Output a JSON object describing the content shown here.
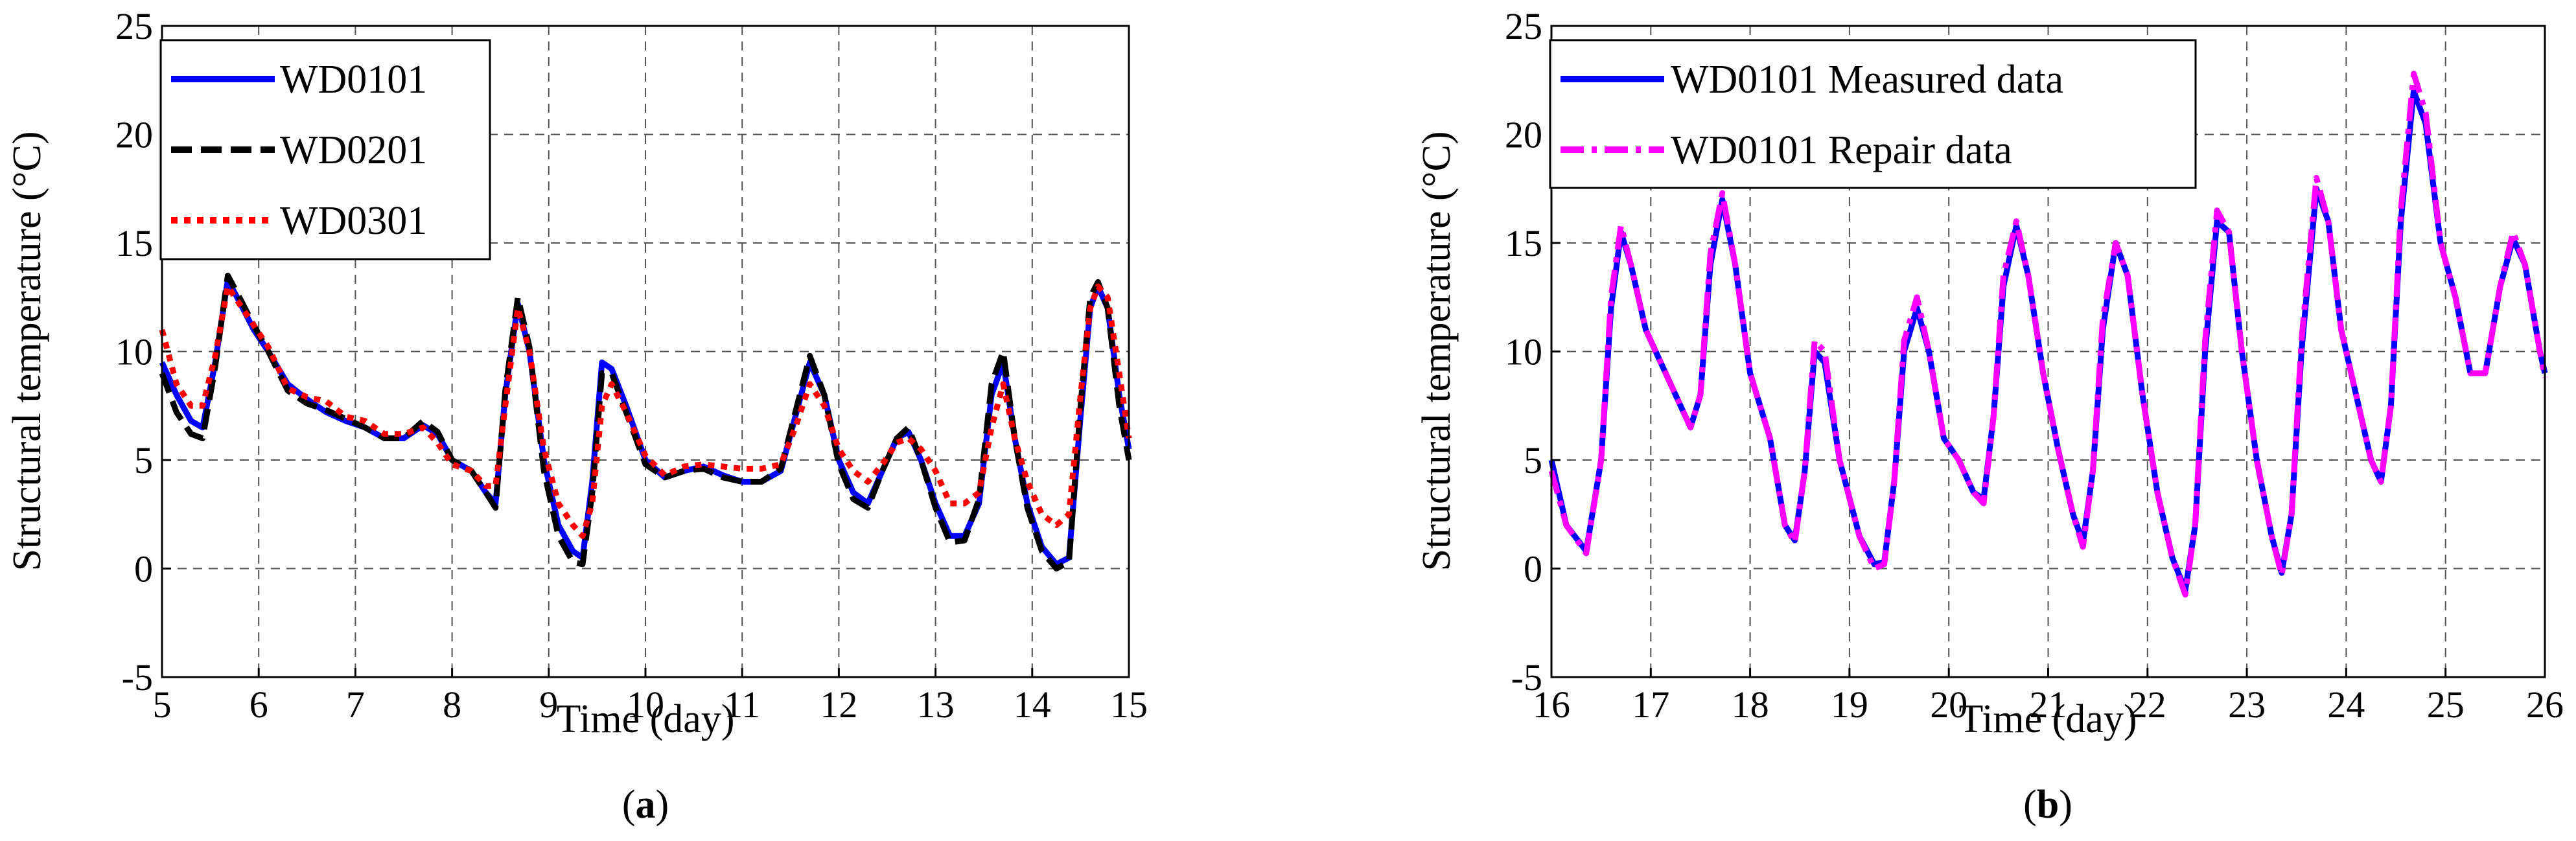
{
  "panels": [
    {
      "label_prefix": "(",
      "label_letter": "a",
      "label_suffix": ")"
    },
    {
      "label_prefix": "(",
      "label_letter": "b",
      "label_suffix": ")"
    }
  ],
  "chart_data": [
    {
      "type": "line",
      "xlabel": "Time (day)",
      "ylabel": "Structural temperature (°C)",
      "xlim": [
        5,
        15
      ],
      "ylim": [
        -5,
        25
      ],
      "xticks": [
        "5",
        "6",
        "7",
        "8",
        "9",
        "10",
        "11",
        "12",
        "13",
        "14",
        "15"
      ],
      "yticks": [
        "-5",
        "0",
        "5",
        "10",
        "15",
        "20",
        "25"
      ],
      "grid": true,
      "legend_position": "top-left",
      "series": [
        {
          "name": "WD0101",
          "color": "#0000ff",
          "dash": "solid",
          "x": [
            5.0,
            5.15,
            5.3,
            5.42,
            5.55,
            5.68,
            5.8,
            5.95,
            6.1,
            6.3,
            6.5,
            6.7,
            6.9,
            7.1,
            7.3,
            7.5,
            7.7,
            7.85,
            8.0,
            8.2,
            8.35,
            8.45,
            8.55,
            8.68,
            8.8,
            8.95,
            9.1,
            9.25,
            9.35,
            9.45,
            9.55,
            9.65,
            9.8,
            10.0,
            10.2,
            10.4,
            10.6,
            10.8,
            11.0,
            11.2,
            11.4,
            11.55,
            11.7,
            11.85,
            12.0,
            12.15,
            12.3,
            12.45,
            12.6,
            12.72,
            12.85,
            13.0,
            13.15,
            13.3,
            13.45,
            13.58,
            13.7,
            13.82,
            13.95,
            14.1,
            14.25,
            14.38,
            14.5,
            14.6,
            14.68,
            14.78,
            14.9,
            15.0
          ],
          "y": [
            9.5,
            8.0,
            6.8,
            6.5,
            9.5,
            13.3,
            12.3,
            11.0,
            10.0,
            8.5,
            7.8,
            7.2,
            6.8,
            6.5,
            6.0,
            6.0,
            6.6,
            6.2,
            5.0,
            4.5,
            3.5,
            3.0,
            8.0,
            12.2,
            10.0,
            5.0,
            2.0,
            0.8,
            0.5,
            4.0,
            9.5,
            9.2,
            7.5,
            5.0,
            4.2,
            4.5,
            4.7,
            4.3,
            4.0,
            4.0,
            4.5,
            7.0,
            9.5,
            8.0,
            5.0,
            3.5,
            3.0,
            4.5,
            6.0,
            6.3,
            5.0,
            3.0,
            1.5,
            1.5,
            3.0,
            8.0,
            9.5,
            6.0,
            3.0,
            1.0,
            0.2,
            0.5,
            7.0,
            12.0,
            13.0,
            12.0,
            8.0,
            5.5
          ]
        },
        {
          "name": "WD0201",
          "color": "#000000",
          "dash": "dashed",
          "x": [
            5.0,
            5.15,
            5.3,
            5.42,
            5.55,
            5.68,
            5.8,
            5.95,
            6.1,
            6.3,
            6.5,
            6.7,
            6.9,
            7.1,
            7.3,
            7.5,
            7.7,
            7.85,
            8.0,
            8.2,
            8.35,
            8.45,
            8.55,
            8.68,
            8.8,
            8.95,
            9.1,
            9.25,
            9.35,
            9.45,
            9.55,
            9.65,
            9.8,
            10.0,
            10.2,
            10.4,
            10.6,
            10.8,
            11.0,
            11.2,
            11.4,
            11.55,
            11.7,
            11.85,
            12.0,
            12.15,
            12.3,
            12.45,
            12.6,
            12.72,
            12.85,
            13.0,
            13.15,
            13.3,
            13.45,
            13.58,
            13.7,
            13.82,
            13.95,
            14.1,
            14.25,
            14.38,
            14.5,
            14.6,
            14.68,
            14.78,
            14.9,
            15.0
          ],
          "y": [
            9.0,
            7.2,
            6.2,
            6.0,
            9.3,
            13.5,
            12.5,
            11.2,
            10.0,
            8.2,
            7.6,
            7.3,
            6.9,
            6.5,
            6.0,
            6.0,
            6.8,
            6.3,
            5.0,
            4.5,
            3.5,
            2.8,
            8.2,
            12.5,
            10.2,
            4.5,
            1.5,
            0.3,
            0.2,
            3.5,
            9.0,
            9.0,
            7.2,
            4.8,
            4.2,
            4.5,
            4.6,
            4.2,
            4.0,
            4.0,
            4.6,
            7.2,
            9.8,
            8.0,
            4.8,
            3.2,
            2.8,
            4.5,
            6.0,
            6.5,
            5.0,
            2.8,
            1.2,
            1.3,
            3.2,
            8.5,
            10.0,
            6.0,
            2.8,
            0.8,
            0.0,
            0.3,
            7.5,
            12.5,
            13.2,
            12.0,
            7.5,
            5.0
          ]
        },
        {
          "name": "WD0301",
          "color": "#ff0000",
          "dash": "dotted",
          "x": [
            5.0,
            5.15,
            5.3,
            5.42,
            5.55,
            5.68,
            5.8,
            5.95,
            6.1,
            6.3,
            6.5,
            6.7,
            6.9,
            7.1,
            7.3,
            7.5,
            7.7,
            7.85,
            8.0,
            8.2,
            8.35,
            8.45,
            8.55,
            8.68,
            8.8,
            8.95,
            9.1,
            9.25,
            9.35,
            9.45,
            9.55,
            9.65,
            9.8,
            10.0,
            10.2,
            10.4,
            10.6,
            10.8,
            11.0,
            11.2,
            11.4,
            11.55,
            11.7,
            11.85,
            12.0,
            12.15,
            12.3,
            12.45,
            12.6,
            12.72,
            12.85,
            13.0,
            13.15,
            13.3,
            13.45,
            13.58,
            13.7,
            13.82,
            13.95,
            14.1,
            14.25,
            14.38,
            14.5,
            14.6,
            14.68,
            14.78,
            14.9,
            15.0
          ],
          "y": [
            11.0,
            8.5,
            7.5,
            7.5,
            9.8,
            13.0,
            12.2,
            11.2,
            10.2,
            8.3,
            7.9,
            7.7,
            7.0,
            6.8,
            6.2,
            6.2,
            6.5,
            5.8,
            4.8,
            4.5,
            3.8,
            3.8,
            7.5,
            12.0,
            10.0,
            5.5,
            3.0,
            2.0,
            1.5,
            3.0,
            7.5,
            8.5,
            7.2,
            5.2,
            4.3,
            4.7,
            4.8,
            4.7,
            4.6,
            4.6,
            4.8,
            6.5,
            8.5,
            7.5,
            5.5,
            4.5,
            4.0,
            4.8,
            5.8,
            6.0,
            5.5,
            4.5,
            3.0,
            3.0,
            3.5,
            6.5,
            8.5,
            6.0,
            4.0,
            2.5,
            2.0,
            2.5,
            8.0,
            12.0,
            13.0,
            12.5,
            9.0,
            6.0
          ]
        }
      ]
    },
    {
      "type": "line",
      "xlabel": "Time (day)",
      "ylabel": "Structural temperature (°C)",
      "xlim": [
        16,
        26
      ],
      "ylim": [
        -5,
        25
      ],
      "xticks": [
        "16",
        "17",
        "18",
        "19",
        "20",
        "21",
        "22",
        "23",
        "24",
        "25",
        "26"
      ],
      "yticks": [
        "-5",
        "0",
        "5",
        "10",
        "15",
        "20",
        "25"
      ],
      "grid": true,
      "legend_position": "top-left",
      "series": [
        {
          "name": "WD0101 Measured data",
          "color": "#0000ff",
          "dash": "solid",
          "x": [
            16.0,
            16.15,
            16.35,
            16.5,
            16.6,
            16.7,
            16.8,
            16.95,
            17.1,
            17.25,
            17.4,
            17.5,
            17.6,
            17.72,
            17.85,
            18.0,
            18.2,
            18.35,
            18.45,
            18.55,
            18.65,
            18.75,
            18.9,
            19.1,
            19.25,
            19.35,
            19.45,
            19.55,
            19.68,
            19.8,
            19.95,
            20.1,
            20.25,
            20.35,
            20.45,
            20.55,
            20.68,
            20.8,
            20.95,
            21.1,
            21.25,
            21.35,
            21.45,
            21.55,
            21.68,
            21.8,
            21.95,
            22.1,
            22.25,
            22.38,
            22.48,
            22.58,
            22.7,
            22.82,
            22.95,
            23.1,
            23.25,
            23.35,
            23.45,
            23.55,
            23.7,
            23.82,
            23.95,
            24.1,
            24.25,
            24.35,
            24.45,
            24.55,
            24.68,
            24.8,
            24.95,
            25.1,
            25.25,
            25.4,
            25.55,
            25.68,
            25.8,
            25.95,
            26.0
          ],
          "y": [
            5.0,
            2.0,
            0.8,
            5.0,
            12.0,
            15.5,
            14.0,
            11.0,
            9.5,
            8.0,
            6.5,
            8.0,
            14.0,
            17.0,
            14.0,
            9.0,
            6.0,
            2.0,
            1.3,
            4.5,
            10.0,
            9.5,
            5.0,
            1.5,
            0.2,
            0.3,
            4.0,
            10.0,
            12.0,
            10.0,
            6.0,
            5.0,
            3.5,
            3.2,
            7.0,
            13.0,
            15.8,
            13.5,
            9.0,
            5.5,
            2.5,
            1.2,
            4.5,
            11.0,
            15.0,
            13.5,
            8.0,
            3.5,
            0.5,
            -1.0,
            2.0,
            10.0,
            16.0,
            15.5,
            10.0,
            5.0,
            1.5,
            -0.2,
            2.5,
            10.0,
            17.5,
            16.0,
            11.0,
            8.0,
            5.0,
            4.0,
            7.5,
            16.0,
            22.0,
            20.5,
            15.0,
            12.5,
            9.0,
            9.0,
            13.0,
            15.2,
            14.0,
            10.0,
            9.0
          ]
        },
        {
          "name": "WD0101 Repair data",
          "color": "#ff00ff",
          "dash": "dashdot",
          "x": [
            16.0,
            16.15,
            16.35,
            16.5,
            16.6,
            16.7,
            16.8,
            16.95,
            17.1,
            17.25,
            17.4,
            17.5,
            17.6,
            17.72,
            17.85,
            18.0,
            18.2,
            18.35,
            18.45,
            18.55,
            18.65,
            18.75,
            18.9,
            19.1,
            19.25,
            19.35,
            19.45,
            19.55,
            19.68,
            19.8,
            19.95,
            20.1,
            20.25,
            20.35,
            20.45,
            20.55,
            20.68,
            20.8,
            20.95,
            21.1,
            21.25,
            21.35,
            21.45,
            21.55,
            21.68,
            21.8,
            21.95,
            22.1,
            22.25,
            22.38,
            22.48,
            22.58,
            22.7,
            22.82,
            22.95,
            23.1,
            23.25,
            23.35,
            23.45,
            23.55,
            23.7,
            23.82,
            23.95,
            24.1,
            24.25,
            24.35,
            24.45,
            24.55,
            24.68,
            24.8,
            24.95,
            25.1,
            25.25,
            25.4,
            25.55,
            25.68,
            25.8,
            25.95,
            26.0
          ],
          "y": [
            4.5,
            2.0,
            0.7,
            5.0,
            12.5,
            15.8,
            14.0,
            11.0,
            9.5,
            8.0,
            6.5,
            8.0,
            14.5,
            17.3,
            14.0,
            9.0,
            6.0,
            2.0,
            1.2,
            4.5,
            10.5,
            10.0,
            5.0,
            1.5,
            0.0,
            0.2,
            4.0,
            10.5,
            12.5,
            10.0,
            6.0,
            5.0,
            3.5,
            3.0,
            7.0,
            13.5,
            16.0,
            13.5,
            9.0,
            5.5,
            2.5,
            1.0,
            4.5,
            11.5,
            15.0,
            13.5,
            8.0,
            3.5,
            0.5,
            -1.2,
            2.0,
            10.5,
            16.5,
            15.5,
            10.0,
            5.0,
            1.5,
            -0.3,
            2.5,
            10.5,
            18.0,
            16.0,
            11.0,
            8.0,
            5.0,
            4.0,
            7.5,
            16.5,
            22.8,
            21.0,
            15.0,
            12.5,
            9.0,
            9.0,
            13.0,
            15.5,
            14.0,
            10.0,
            8.8
          ]
        }
      ]
    }
  ]
}
